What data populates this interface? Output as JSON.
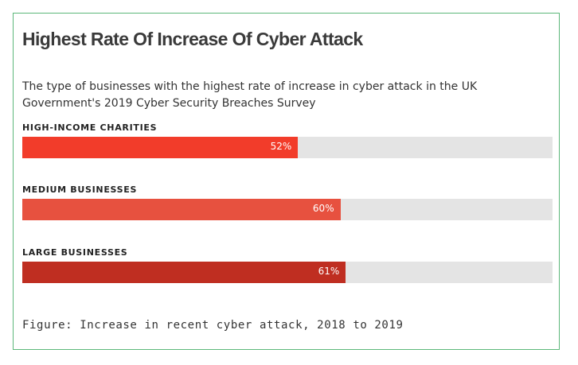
{
  "chart_data": {
    "type": "bar",
    "orientation": "horizontal",
    "title": "Highest Rate Of Increase Of Cyber Attack",
    "subtitle": "The type of businesses with the highest rate of increase in cyber attack in the UK Government's 2019 Cyber Security Breaches Survey",
    "categories": [
      "HIGH-INCOME CHARITIES",
      "MEDIUM BUSINESSES",
      "LARGE BUSINESSES"
    ],
    "values": [
      52,
      60,
      61
    ],
    "value_labels": [
      "52%",
      "60%",
      "61%"
    ],
    "xlim": [
      0,
      100
    ],
    "unit": "%",
    "bar_colors": [
      "#f23c2a",
      "#e7513f",
      "#bf2e21"
    ],
    "track_color": "#e4e4e4",
    "caption": "Figure: Increase in recent cyber attack, 2018 to 2019"
  }
}
